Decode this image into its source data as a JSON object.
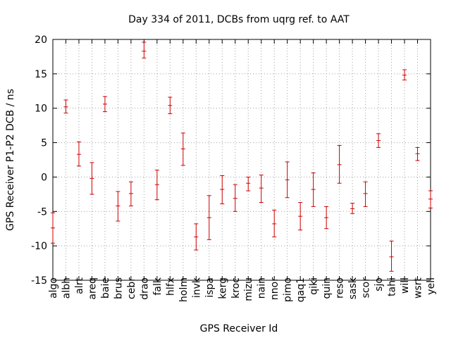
{
  "chart_data": {
    "type": "scatter",
    "title": "Day 334 of 2011, DCBs from uqrg ref. to AAT",
    "xlabel": "GPS Receiver Id",
    "ylabel": "GPS Receiver P1-P2 DCB / ns",
    "ylim": [
      -15,
      20
    ],
    "yticks": [
      -15,
      -10,
      -5,
      0,
      5,
      10,
      15,
      20
    ],
    "grid": true,
    "series_color": "#cc0000",
    "grid_color": "#a0a0a0",
    "categories": [
      "algo",
      "albh",
      "alrt",
      "areq",
      "baie",
      "brus",
      "cebr",
      "drao",
      "falk",
      "hlfx",
      "holm",
      "invk",
      "ispa",
      "kerg",
      "kroc",
      "mizu",
      "nain",
      "nnor",
      "pimo",
      "qaq1",
      "qiki",
      "quin",
      "reso",
      "sask",
      "scor",
      "sjo",
      "tahi",
      "will",
      "wsrt",
      "yell"
    ],
    "points": [
      {
        "id": "algo",
        "value": -7.4,
        "low": -9.6,
        "high": -5.2
      },
      {
        "id": "albh",
        "value": 10.2,
        "low": 9.3,
        "high": 11.2
      },
      {
        "id": "alrt",
        "value": 3.3,
        "low": 1.6,
        "high": 5.1
      },
      {
        "id": "areq",
        "value": -0.2,
        "low": -2.5,
        "high": 2.1
      },
      {
        "id": "baie",
        "value": 10.6,
        "low": 9.5,
        "high": 11.7
      },
      {
        "id": "brus",
        "value": -4.2,
        "low": -6.4,
        "high": -2.1
      },
      {
        "id": "cebr",
        "value": -2.4,
        "low": -4.2,
        "high": -0.7
      },
      {
        "id": "drao",
        "value": 18.3,
        "low": 17.3,
        "high": 19.6
      },
      {
        "id": "falk",
        "value": -1.1,
        "low": -3.3,
        "high": 1.0
      },
      {
        "id": "hlfx",
        "value": 10.4,
        "low": 9.2,
        "high": 11.6
      },
      {
        "id": "holm",
        "value": 4.1,
        "low": 1.7,
        "high": 6.4
      },
      {
        "id": "invk",
        "value": -8.7,
        "low": -10.6,
        "high": -6.8
      },
      {
        "id": "ispa",
        "value": -5.9,
        "low": -9.1,
        "high": -2.7
      },
      {
        "id": "kerg",
        "value": -1.8,
        "low": -3.9,
        "high": 0.2
      },
      {
        "id": "kroc",
        "value": -3.1,
        "low": -5.0,
        "high": -1.1
      },
      {
        "id": "mizu",
        "value": -0.9,
        "low": -2.0,
        "high": 0.0
      },
      {
        "id": "nain",
        "value": -1.6,
        "low": -3.7,
        "high": 0.3
      },
      {
        "id": "nnor",
        "value": -6.8,
        "low": -8.7,
        "high": -4.8
      },
      {
        "id": "pimo",
        "value": -0.4,
        "low": -3.0,
        "high": 2.2
      },
      {
        "id": "qaq1",
        "value": -5.7,
        "low": -7.7,
        "high": -3.7
      },
      {
        "id": "qiki",
        "value": -1.8,
        "low": -4.3,
        "high": 0.6
      },
      {
        "id": "quin",
        "value": -5.9,
        "low": -7.5,
        "high": -4.3
      },
      {
        "id": "reso",
        "value": 1.8,
        "low": -0.9,
        "high": 4.6
      },
      {
        "id": "sask",
        "value": -4.6,
        "low": -5.3,
        "high": -3.8
      },
      {
        "id": "scor",
        "value": -2.4,
        "low": -4.3,
        "high": -0.7
      },
      {
        "id": "sjo",
        "value": 5.3,
        "low": 4.3,
        "high": 6.3
      },
      {
        "id": "tahi",
        "value": -11.6,
        "low": -13.7,
        "high": -9.3
      },
      {
        "id": "will",
        "value": 14.8,
        "low": 14.1,
        "high": 15.6
      },
      {
        "id": "wsrt",
        "value": 3.4,
        "low": 2.4,
        "high": 4.3
      },
      {
        "id": "yell",
        "value": -3.2,
        "low": -4.5,
        "high": -2.0
      }
    ]
  }
}
